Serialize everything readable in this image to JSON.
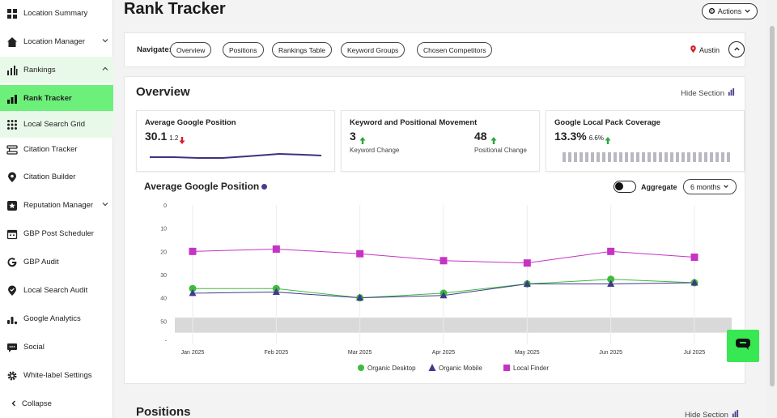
{
  "sidebar": {
    "items": [
      {
        "label": "Location Summary",
        "icon": "grid-icon"
      },
      {
        "label": "Location Manager",
        "icon": "home-icon"
      },
      {
        "label": "Rankings",
        "icon": "bar-chart-icon"
      },
      {
        "label": "Rank Tracker",
        "icon": "rank-tracker-icon"
      },
      {
        "label": "Local Search Grid",
        "icon": "dots-grid-icon"
      },
      {
        "label": "Citation Tracker",
        "icon": "citation-tracker-icon"
      },
      {
        "label": "Citation Builder",
        "icon": "location-pin-icon"
      },
      {
        "label": "Reputation Manager",
        "icon": "star-badge-icon"
      },
      {
        "label": "GBP Post Scheduler",
        "icon": "calendar-icon"
      },
      {
        "label": "GBP Audit",
        "icon": "google-g-icon"
      },
      {
        "label": "Local Search Audit",
        "icon": "location-check-icon"
      },
      {
        "label": "Google Analytics",
        "icon": "analytics-icon"
      },
      {
        "label": "Social",
        "icon": "chat-bubble-icon"
      },
      {
        "label": "White-label Settings",
        "icon": "gear-icon"
      }
    ],
    "collapse_label": "Collapse"
  },
  "header": {
    "title": "Rank Tracker",
    "actions_label": "Actions"
  },
  "navigate": {
    "label": "Navigate:",
    "pills": [
      "Overview",
      "Positions",
      "Rankings Table",
      "Keyword Groups",
      "Chosen Competitors"
    ],
    "location": "Austin"
  },
  "overview": {
    "title": "Overview",
    "hide_label": "Hide Section",
    "cards": {
      "avg_position": {
        "title": "Average Google Position",
        "value": "30.1",
        "change": "1.2"
      },
      "movement": {
        "title": "Keyword and Positional Movement",
        "keyword_value": "3",
        "keyword_label": "Keyword Change",
        "positional_value": "48",
        "positional_label": "Positional Change"
      },
      "coverage": {
        "title": "Google Local Pack Coverage",
        "value": "13.3%",
        "change": "6.6%"
      }
    },
    "chart_title": "Average Google Position",
    "aggregate_label": "Aggregate",
    "range_label": "6 months"
  },
  "positions": {
    "title": "Positions",
    "hide_label": "Hide Section"
  },
  "colors": {
    "accent_green": "#6cf07a",
    "desktop": "#3dbb3d",
    "mobile": "#3f3a8c",
    "local_finder": "#c533c5",
    "down_red": "#d81b2a",
    "up_green": "#26a83a"
  },
  "chart_data": {
    "type": "line",
    "title": "Average Google Position",
    "categories": [
      "Jan 2025",
      "Feb 2025",
      "Mar 2025",
      "Apr 2025",
      "May 2025",
      "Jun 2025",
      "Jul 2025"
    ],
    "y_ticks": [
      "0",
      "10",
      "20",
      "30",
      "40",
      "50",
      "-"
    ],
    "ylim": [
      0,
      60
    ],
    "y_inverted": true,
    "series": [
      {
        "name": "Organic Desktop",
        "marker": "circle",
        "values": [
          36,
          36,
          40,
          38,
          34,
          32,
          33.5
        ]
      },
      {
        "name": "Organic Mobile",
        "marker": "triangle",
        "values": [
          38,
          37.5,
          40,
          39,
          34,
          34,
          33.5
        ]
      },
      {
        "name": "Local Finder",
        "marker": "square",
        "values": [
          20,
          19,
          21,
          24,
          25,
          20,
          22.5
        ]
      }
    ],
    "legend_position": "bottom",
    "grid": true
  }
}
